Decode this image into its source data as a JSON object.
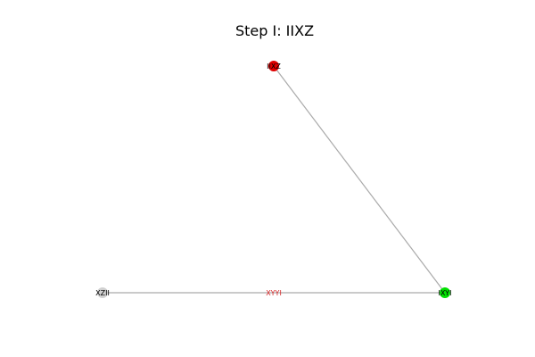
{
  "title": "Step I: IIXZ",
  "colors": {
    "edge": "#aaaaaa",
    "edge_label": "#d62728"
  },
  "nodes": [
    {
      "id": "IIXZ",
      "label": "IIXZ",
      "color": "#e00000"
    },
    {
      "id": "XZII",
      "label": "XZII",
      "color": "#d0d0d0"
    },
    {
      "id": "IXYI",
      "label": "IXYI",
      "color": "#00e000"
    }
  ],
  "edges": [
    {
      "from": "IIXZ",
      "to": "IXYI",
      "label": ""
    },
    {
      "from": "XZII",
      "to": "IXYI",
      "label": "XYYI"
    }
  ]
}
